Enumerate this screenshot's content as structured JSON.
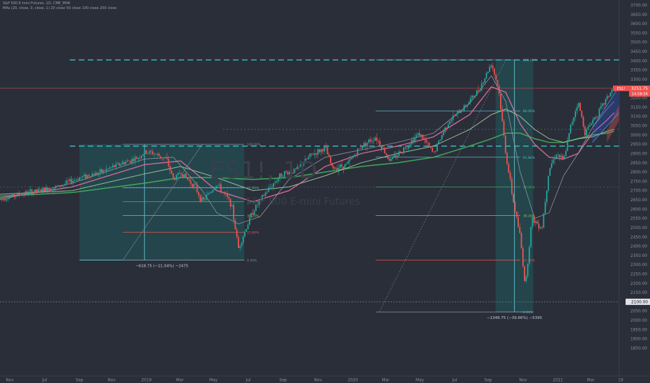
{
  "header": {
    "line1": "S&P 500 E-mini Futures, 1D, CME_MINI",
    "line2": "MAs (20, close, 0, close, 1) 20 close 50 close 100 close 200 close"
  },
  "watermark": {
    "symbol": "ES1!, 1D",
    "description": "S&P 500 E-mini Futures"
  },
  "colors": {
    "background": "#2a2e39",
    "up": "#26a69a",
    "down": "#ef5350",
    "box": "#1f5a5c",
    "ma20": "#9aa0ab",
    "ma50": "#e06fa0",
    "ma100": "#a0d0a0",
    "ma200": "#3fae5a",
    "dashed": "#38c3c9",
    "price_line": "#ef5350"
  },
  "chart_data": {
    "type": "candlestick",
    "y_range": [
      1800,
      3720
    ],
    "y_ticks": [
      "1850.00",
      "1900.00",
      "1950.00",
      "2000.00",
      "2050.00",
      "2100.00",
      "2150.00",
      "2200.00",
      "2250.00",
      "2300.00",
      "2350.00",
      "2400.00",
      "2450.00",
      "2500.00",
      "2550.00",
      "2600.00",
      "2650.00",
      "2700.00",
      "2750.00",
      "2800.00",
      "2850.00",
      "2900.00",
      "2950.00",
      "3000.00",
      "3050.00",
      "3100.00",
      "3150.00",
      "3200.00",
      "3250.00",
      "3300.00",
      "3350.00",
      "3400.00",
      "3450.00",
      "3500.00",
      "3550.00",
      "3600.00",
      "3650.00",
      "3700.00"
    ],
    "x_ticks": [
      "Nov",
      "Jul",
      "Sep",
      "Nov",
      "2019",
      "Mar",
      "May",
      "Jul",
      "Sep",
      "Nov",
      "2020",
      "Mar",
      "May",
      "Jul",
      "Sep",
      "Nov",
      "2021",
      "Mar",
      "19"
    ],
    "last_price": {
      "label": "ES1!",
      "value": "3251.75",
      "countdown": "14:58:56"
    },
    "level_label": "2100.00",
    "horizontal_levels": [
      3405,
      2940,
      3020,
      2720
    ],
    "price_path": [
      [
        0,
        2655
      ],
      [
        4,
        2690
      ],
      [
        8,
        2720
      ],
      [
        11,
        2770
      ],
      [
        14,
        2800
      ],
      [
        17,
        2850
      ],
      [
        19,
        2875
      ],
      [
        20,
        2905
      ],
      [
        21,
        2905
      ],
      [
        23,
        2870
      ],
      [
        24,
        2760
      ],
      [
        25,
        2800
      ],
      [
        27,
        2720
      ],
      [
        28,
        2640
      ],
      [
        30,
        2735
      ],
      [
        32,
        2630
      ],
      [
        33,
        2390
      ],
      [
        35,
        2590
      ],
      [
        37,
        2700
      ],
      [
        39,
        2790
      ],
      [
        41,
        2810
      ],
      [
        43,
        2890
      ],
      [
        45,
        2930
      ],
      [
        46,
        2820
      ],
      [
        48,
        2840
      ],
      [
        50,
        2940
      ],
      [
        52,
        2990
      ],
      [
        54,
        2860
      ],
      [
        56,
        2930
      ],
      [
        58,
        3010
      ],
      [
        60,
        2900
      ],
      [
        62,
        3070
      ],
      [
        64,
        3140
      ],
      [
        66,
        3230
      ],
      [
        67,
        3300
      ],
      [
        68,
        3390
      ],
      [
        69,
        3250
      ],
      [
        70,
        2900
      ],
      [
        71,
        2650
      ],
      [
        72,
        2450
      ],
      [
        72.7,
        2180
      ],
      [
        73.6,
        2550
      ],
      [
        75,
        2500
      ],
      [
        76,
        2820
      ],
      [
        77,
        2900
      ],
      [
        78,
        2860
      ],
      [
        79,
        3050
      ],
      [
        80,
        3180
      ],
      [
        81,
        3010
      ],
      [
        82,
        3080
      ],
      [
        83,
        3130
      ],
      [
        84,
        3200
      ],
      [
        85,
        3260
      ]
    ],
    "ma20": [
      [
        0,
        2650
      ],
      [
        10,
        2740
      ],
      [
        20,
        2870
      ],
      [
        24,
        2880
      ],
      [
        28,
        2700
      ],
      [
        30,
        2580
      ],
      [
        33,
        2520
      ],
      [
        36,
        2560
      ],
      [
        40,
        2760
      ],
      [
        45,
        2880
      ],
      [
        50,
        2920
      ],
      [
        55,
        2960
      ],
      [
        60,
        3010
      ],
      [
        65,
        3170
      ],
      [
        68,
        3320
      ],
      [
        70,
        3180
      ],
      [
        72,
        2800
      ],
      [
        74,
        2550
      ],
      [
        76,
        2580
      ],
      [
        78,
        2780
      ],
      [
        80,
        2900
      ],
      [
        82,
        3040
      ],
      [
        84,
        3140
      ],
      [
        85,
        3180
      ]
    ],
    "ma50": [
      [
        0,
        2660
      ],
      [
        10,
        2720
      ],
      [
        20,
        2840
      ],
      [
        25,
        2860
      ],
      [
        30,
        2700
      ],
      [
        35,
        2640
      ],
      [
        40,
        2700
      ],
      [
        45,
        2830
      ],
      [
        50,
        2900
      ],
      [
        55,
        2940
      ],
      [
        60,
        2990
      ],
      [
        65,
        3110
      ],
      [
        68,
        3260
      ],
      [
        70,
        3230
      ],
      [
        72,
        3060
      ],
      [
        74,
        2950
      ],
      [
        76,
        2880
      ],
      [
        78,
        2870
      ],
      [
        80,
        2900
      ],
      [
        82,
        3010
      ],
      [
        84,
        3080
      ],
      [
        85,
        3120
      ]
    ],
    "ma100": [
      [
        0,
        2680
      ],
      [
        10,
        2700
      ],
      [
        20,
        2790
      ],
      [
        25,
        2830
      ],
      [
        30,
        2770
      ],
      [
        35,
        2700
      ],
      [
        40,
        2720
      ],
      [
        45,
        2780
      ],
      [
        50,
        2850
      ],
      [
        55,
        2900
      ],
      [
        60,
        2940
      ],
      [
        65,
        3030
      ],
      [
        68,
        3110
      ],
      [
        70,
        3140
      ],
      [
        72,
        3100
      ],
      [
        74,
        3030
      ],
      [
        76,
        2980
      ],
      [
        78,
        2960
      ],
      [
        80,
        2980
      ],
      [
        82,
        2990
      ],
      [
        84,
        3020
      ],
      [
        85,
        3030
      ]
    ],
    "ma200": [
      [
        0,
        2670
      ],
      [
        10,
        2690
      ],
      [
        20,
        2740
      ],
      [
        25,
        2770
      ],
      [
        30,
        2770
      ],
      [
        35,
        2760
      ],
      [
        40,
        2770
      ],
      [
        45,
        2800
      ],
      [
        50,
        2830
      ],
      [
        55,
        2850
      ],
      [
        60,
        2880
      ],
      [
        65,
        2940
      ],
      [
        68,
        2980
      ],
      [
        70,
        3010
      ],
      [
        72,
        3010
      ],
      [
        74,
        2980
      ],
      [
        76,
        2960
      ],
      [
        78,
        2960
      ],
      [
        80,
        2980
      ],
      [
        82,
        3000
      ],
      [
        84,
        3010
      ],
      [
        85,
        3020
      ]
    ],
    "measure_boxes": [
      {
        "x_range": [
          11,
          33.8
        ],
        "y_range": [
          2325,
          2950
        ],
        "label": "−618.75 (−21.04%) −2475"
      },
      {
        "x_range": [
          68.6,
          73.8
        ],
        "y_range": [
          2045,
          3405
        ],
        "label": "−1348.75 (−39.66%) −5395"
      }
    ],
    "fib_levels": [
      {
        "label": "100.00%",
        "value": 2950,
        "side": "left"
      },
      {
        "label": "61.80%",
        "value": 2715,
        "side": "left"
      },
      {
        "label": "50.00%",
        "value": 2640,
        "side": "left"
      },
      {
        "label": "38.20%",
        "value": 2565,
        "side": "left"
      },
      {
        "label": "23.60%",
        "value": 2475,
        "side": "left"
      },
      {
        "label": "0.00%",
        "value": 2325,
        "side": "left"
      },
      {
        "label": "100.00%",
        "value": 3405,
        "side": "right"
      },
      {
        "label": "80.00%",
        "value": 3130,
        "side": "right"
      },
      {
        "label": "61.80%",
        "value": 2880,
        "side": "right"
      },
      {
        "label": "50.00%",
        "value": 2720,
        "side": "right"
      },
      {
        "label": "38.20%",
        "value": 2565,
        "side": "right"
      },
      {
        "label": "23.60%",
        "value": 2325,
        "side": "right"
      },
      {
        "label": "0.00%",
        "value": 2045,
        "side": "right"
      }
    ],
    "channel": {
      "start": [
        82,
        3040,
        2960
      ],
      "end": [
        87.3,
        3360,
        3190
      ]
    }
  }
}
